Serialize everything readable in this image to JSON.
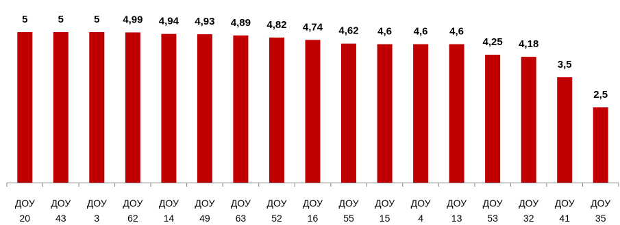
{
  "chart_data": {
    "type": "bar",
    "title": "",
    "xlabel": "",
    "ylabel": "",
    "ylim": [
      0,
      5
    ],
    "grid": false,
    "legend": "none",
    "bar_color": "#C00000",
    "axis_color": "#808080",
    "categories": [
      [
        "ДОУ",
        "20"
      ],
      [
        "ДОУ",
        "43"
      ],
      [
        "ДОУ",
        "3"
      ],
      [
        "ДОУ",
        "62"
      ],
      [
        "ДОУ",
        "14"
      ],
      [
        "ДОУ",
        "49"
      ],
      [
        "ДОУ",
        "63"
      ],
      [
        "ДОУ",
        "52"
      ],
      [
        "ДОУ",
        "16"
      ],
      [
        "ДОУ",
        "55"
      ],
      [
        "ДОУ",
        "15"
      ],
      [
        "ДОУ",
        "4"
      ],
      [
        "ДОУ",
        "13"
      ],
      [
        "ДОУ",
        "53"
      ],
      [
        "ДОУ",
        "32"
      ],
      [
        "ДОУ",
        "41"
      ],
      [
        "ДОУ",
        "35"
      ]
    ],
    "values": [
      5,
      5,
      5,
      4.99,
      4.94,
      4.93,
      4.89,
      4.82,
      4.74,
      4.62,
      4.6,
      4.6,
      4.6,
      4.25,
      4.18,
      3.5,
      2.5
    ],
    "value_labels": [
      "5",
      "5",
      "5",
      "4,99",
      "4,94",
      "4,93",
      "4,89",
      "4,82",
      "4,74",
      "4,62",
      "4,6",
      "4,6",
      "4,6",
      "4,25",
      "4,18",
      "3,5",
      "2,5"
    ]
  }
}
